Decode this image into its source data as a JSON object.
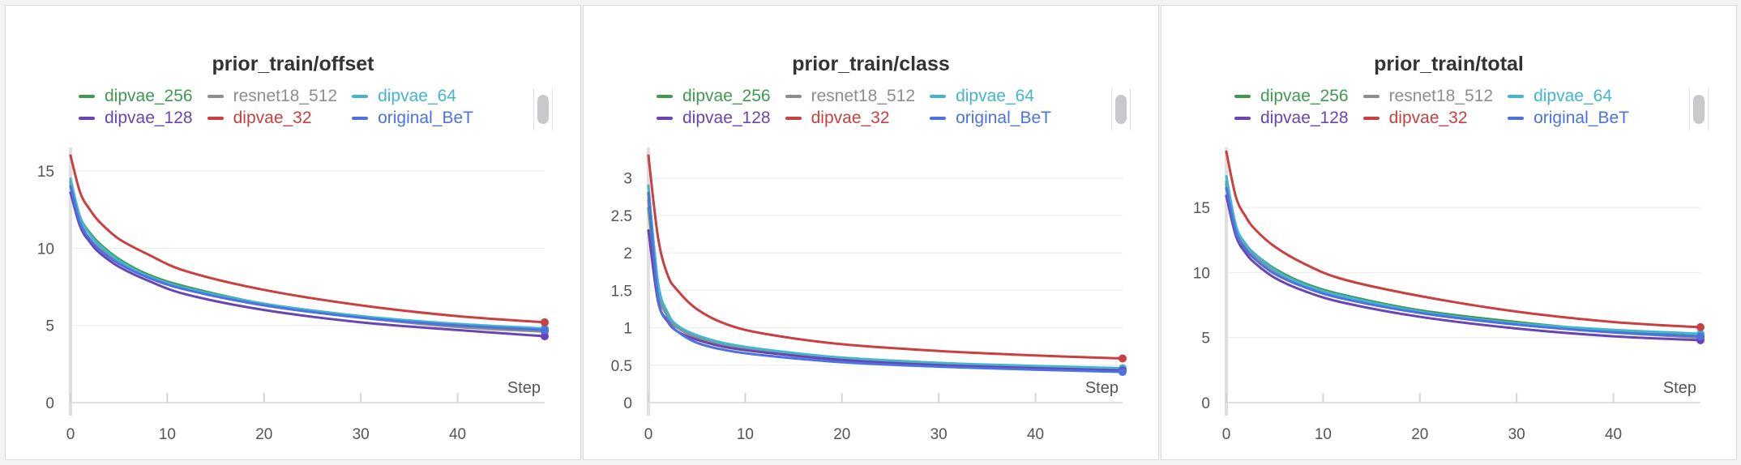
{
  "legend": [
    {
      "name": "dipvae_256",
      "color": "#3f9a4f"
    },
    {
      "name": "resnet18_512",
      "color": "#8d8d8d"
    },
    {
      "name": "dipvae_64",
      "color": "#44b5cf"
    },
    {
      "name": "dipvae_128",
      "color": "#6a44b2"
    },
    {
      "name": "dipvae_32",
      "color": "#c94040"
    },
    {
      "name": "original_BeT",
      "color": "#4c72e0"
    }
  ],
  "chart_data": [
    {
      "type": "line",
      "title": "prior_train/offset",
      "xlabel": "Step",
      "ylabel": "",
      "xlim": [
        0,
        49
      ],
      "ylim": [
        0,
        16
      ],
      "xticks": [
        "0",
        "10",
        "20",
        "30",
        "40"
      ],
      "yticks": [
        "0",
        "5",
        "10",
        "15"
      ],
      "grid": true,
      "legend_position": "top",
      "x": [
        0,
        1,
        2,
        3,
        5,
        8,
        12,
        20,
        30,
        40,
        49
      ],
      "series": [
        {
          "name": "dipvae_256",
          "color": "#3f9a4f",
          "values": [
            14.2,
            12.0,
            11.0,
            10.3,
            9.3,
            8.3,
            7.5,
            6.4,
            5.6,
            5.0,
            4.6
          ]
        },
        {
          "name": "resnet18_512",
          "color": "#8d8d8d",
          "values": [
            14.3,
            11.8,
            10.9,
            10.1,
            9.1,
            8.2,
            7.4,
            6.3,
            5.5,
            4.9,
            4.6
          ]
        },
        {
          "name": "dipvae_64",
          "color": "#44b5cf",
          "values": [
            14.5,
            12.0,
            10.9,
            10.2,
            9.2,
            8.2,
            7.4,
            6.4,
            5.6,
            5.1,
            4.8
          ]
        },
        {
          "name": "dipvae_128",
          "color": "#6a44b2",
          "values": [
            13.6,
            11.4,
            10.4,
            9.7,
            8.8,
            7.9,
            7.0,
            6.0,
            5.2,
            4.7,
            4.3
          ]
        },
        {
          "name": "dipvae_32",
          "color": "#c94040",
          "values": [
            16.0,
            13.6,
            12.5,
            11.7,
            10.6,
            9.6,
            8.5,
            7.3,
            6.3,
            5.6,
            5.2
          ]
        },
        {
          "name": "original_BeT",
          "color": "#4c72e0",
          "values": [
            14.0,
            11.6,
            10.6,
            9.9,
            9.0,
            8.1,
            7.3,
            6.3,
            5.5,
            5.0,
            4.7
          ]
        }
      ]
    },
    {
      "type": "line",
      "title": "prior_train/class",
      "xlabel": "Step",
      "ylabel": "",
      "xlim": [
        0,
        49
      ],
      "ylim": [
        0,
        3.3
      ],
      "xticks": [
        "0",
        "10",
        "20",
        "30",
        "40"
      ],
      "yticks": [
        "0",
        "0.5",
        "1",
        "1.5",
        "2",
        "2.5",
        "3"
      ],
      "grid": true,
      "legend_position": "top",
      "x": [
        0,
        1,
        2,
        3,
        5,
        8,
        12,
        20,
        30,
        40,
        49
      ],
      "series": [
        {
          "name": "dipvae_256",
          "color": "#3f9a4f",
          "values": [
            2.6,
            1.5,
            1.15,
            1.0,
            0.88,
            0.78,
            0.7,
            0.6,
            0.53,
            0.48,
            0.45
          ]
        },
        {
          "name": "resnet18_512",
          "color": "#8d8d8d",
          "values": [
            2.7,
            1.5,
            1.15,
            1.0,
            0.87,
            0.77,
            0.69,
            0.59,
            0.52,
            0.48,
            0.45
          ]
        },
        {
          "name": "dipvae_64",
          "color": "#44b5cf",
          "values": [
            2.9,
            1.6,
            1.2,
            1.03,
            0.9,
            0.79,
            0.71,
            0.6,
            0.53,
            0.49,
            0.46
          ]
        },
        {
          "name": "dipvae_128",
          "color": "#6a44b2",
          "values": [
            2.3,
            1.35,
            1.08,
            0.95,
            0.84,
            0.74,
            0.67,
            0.57,
            0.5,
            0.46,
            0.43
          ]
        },
        {
          "name": "dipvae_32",
          "color": "#c94040",
          "values": [
            3.3,
            2.2,
            1.7,
            1.5,
            1.25,
            1.05,
            0.92,
            0.78,
            0.69,
            0.63,
            0.59
          ]
        },
        {
          "name": "original_BeT",
          "color": "#4c72e0",
          "values": [
            2.8,
            1.4,
            1.1,
            0.95,
            0.8,
            0.7,
            0.63,
            0.54,
            0.48,
            0.44,
            0.41
          ]
        }
      ]
    },
    {
      "type": "line",
      "title": "prior_train/total",
      "xlabel": "Step",
      "ylabel": "",
      "xlim": [
        0,
        49
      ],
      "ylim": [
        0,
        19
      ],
      "xticks": [
        "0",
        "10",
        "20",
        "30",
        "40"
      ],
      "yticks": [
        "0",
        "5",
        "10",
        "15"
      ],
      "grid": true,
      "legend_position": "top",
      "x": [
        0,
        1,
        2,
        3,
        5,
        8,
        12,
        20,
        30,
        40,
        49
      ],
      "series": [
        {
          "name": "dipvae_256",
          "color": "#3f9a4f",
          "values": [
            16.8,
            13.5,
            12.2,
            11.4,
            10.3,
            9.2,
            8.3,
            7.1,
            6.2,
            5.5,
            5.1
          ]
        },
        {
          "name": "resnet18_512",
          "color": "#8d8d8d",
          "values": [
            17.0,
            13.4,
            12.0,
            11.2,
            10.1,
            9.0,
            8.1,
            6.9,
            6.0,
            5.4,
            5.0
          ]
        },
        {
          "name": "dipvae_64",
          "color": "#44b5cf",
          "values": [
            17.4,
            13.6,
            12.2,
            11.4,
            10.2,
            9.1,
            8.2,
            7.0,
            6.1,
            5.6,
            5.3
          ]
        },
        {
          "name": "dipvae_128",
          "color": "#6a44b2",
          "values": [
            15.9,
            12.8,
            11.5,
            10.7,
            9.6,
            8.6,
            7.7,
            6.6,
            5.7,
            5.1,
            4.8
          ]
        },
        {
          "name": "dipvae_32",
          "color": "#c94040",
          "values": [
            19.3,
            15.8,
            14.3,
            13.3,
            12.0,
            10.7,
            9.5,
            8.2,
            7.0,
            6.2,
            5.8
          ]
        },
        {
          "name": "original_BeT",
          "color": "#4c72e0",
          "values": [
            16.5,
            13.1,
            11.8,
            11.0,
            9.9,
            8.9,
            8.0,
            6.9,
            6.0,
            5.4,
            5.1
          ]
        }
      ]
    }
  ]
}
